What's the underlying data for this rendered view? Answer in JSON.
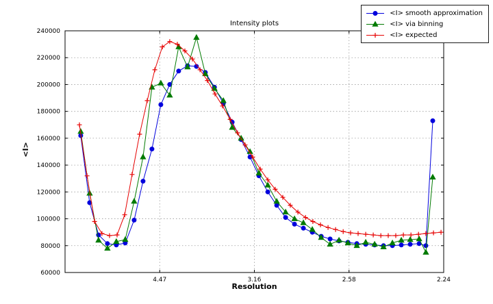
{
  "chart_data": {
    "type": "line",
    "title": "Intensity plots",
    "xlabel": "Resolution",
    "ylabel": "<I>",
    "x_units_note": "x stored as 1/d^2; axis tick labels show resolution d",
    "xlim": [
      0,
      0.2
    ],
    "ylim": [
      60000,
      240000
    ],
    "grid": true,
    "legend_position": "upper-right",
    "yticks": [
      60000,
      80000,
      100000,
      120000,
      140000,
      160000,
      180000,
      200000,
      220000,
      240000
    ],
    "xticks": [
      {
        "value": 0.05,
        "label": "4.47"
      },
      {
        "value": 0.1,
        "label": "3.16"
      },
      {
        "value": 0.15,
        "label": "2.58"
      },
      {
        "value": 0.2,
        "label": "2.24"
      }
    ],
    "series": [
      {
        "name": "<I> smooth approximation",
        "color": "#0000dd",
        "marker": "circle",
        "x": [
          0.0083,
          0.013,
          0.0177,
          0.0224,
          0.0271,
          0.0318,
          0.0365,
          0.0412,
          0.0459,
          0.0506,
          0.0553,
          0.06,
          0.0647,
          0.0694,
          0.0741,
          0.0789,
          0.0836,
          0.0883,
          0.093,
          0.0977,
          0.1024,
          0.1071,
          0.1118,
          0.1165,
          0.1212,
          0.1259,
          0.1306,
          0.1353,
          0.14,
          0.1447,
          0.1494,
          0.1541,
          0.1588,
          0.1635,
          0.1682,
          0.1729,
          0.1776,
          0.1823,
          0.187,
          0.1906,
          0.1942
        ],
        "y": [
          162000,
          112000,
          88000,
          81500,
          80500,
          82000,
          99000,
          128000,
          152000,
          185000,
          200000,
          210000,
          214000,
          213500,
          209000,
          198000,
          186000,
          172000,
          159000,
          146000,
          132000,
          120000,
          110000,
          101000,
          96000,
          93000,
          90000,
          87000,
          85000,
          83500,
          82500,
          81500,
          81000,
          80500,
          80000,
          80000,
          80500,
          81000,
          81500,
          80000,
          173000
        ]
      },
      {
        "name": "<I> via binning",
        "color": "#007a00",
        "marker": "triangle",
        "x": [
          0.0083,
          0.013,
          0.0177,
          0.0224,
          0.0271,
          0.0318,
          0.0365,
          0.0412,
          0.0459,
          0.0506,
          0.0553,
          0.06,
          0.0647,
          0.0694,
          0.0741,
          0.0789,
          0.0836,
          0.0883,
          0.093,
          0.0977,
          0.1024,
          0.1071,
          0.1118,
          0.1165,
          0.1212,
          0.1259,
          0.1306,
          0.1353,
          0.14,
          0.1447,
          0.1494,
          0.1541,
          0.1588,
          0.1635,
          0.1682,
          0.1729,
          0.1776,
          0.1823,
          0.187,
          0.1906,
          0.1942
        ],
        "y": [
          165000,
          119000,
          84000,
          78000,
          83000,
          84500,
          113000,
          146000,
          198000,
          201000,
          192000,
          228000,
          213000,
          235000,
          208000,
          197000,
          188000,
          168000,
          160000,
          150000,
          134000,
          125000,
          113000,
          105000,
          100000,
          97000,
          92000,
          86000,
          81000,
          84000,
          82000,
          80000,
          82500,
          81000,
          79000,
          82000,
          84000,
          84500,
          85000,
          75000,
          131000
        ]
      },
      {
        "name": "<I> expected",
        "color": "#e60000",
        "marker": "plus",
        "x": [
          0.0076,
          0.0116,
          0.0156,
          0.0195,
          0.0235,
          0.0275,
          0.0315,
          0.0354,
          0.0394,
          0.0434,
          0.0474,
          0.0514,
          0.0553,
          0.0593,
          0.0633,
          0.0673,
          0.0713,
          0.0752,
          0.0792,
          0.0832,
          0.0872,
          0.0911,
          0.0951,
          0.0991,
          0.1031,
          0.1071,
          0.111,
          0.115,
          0.119,
          0.123,
          0.127,
          0.1309,
          0.1349,
          0.1389,
          0.1429,
          0.1469,
          0.1508,
          0.1548,
          0.1588,
          0.1628,
          0.1668,
          0.1707,
          0.1747,
          0.1787,
          0.1827,
          0.1867,
          0.1906,
          0.1946,
          0.1986
        ],
        "y": [
          170000,
          132000,
          98000,
          89000,
          87500,
          88000,
          103000,
          133000,
          163000,
          188000,
          211000,
          228000,
          232000,
          230000,
          225000,
          219000,
          211000,
          203000,
          193000,
          184000,
          174000,
          164000,
          155000,
          146000,
          137000,
          129000,
          122000,
          116000,
          110000,
          105000,
          101000,
          98000,
          95500,
          93500,
          92000,
          90500,
          89500,
          89000,
          88500,
          88000,
          87500,
          87500,
          87500,
          88000,
          88000,
          88500,
          89000,
          89500,
          90000
        ]
      }
    ]
  }
}
